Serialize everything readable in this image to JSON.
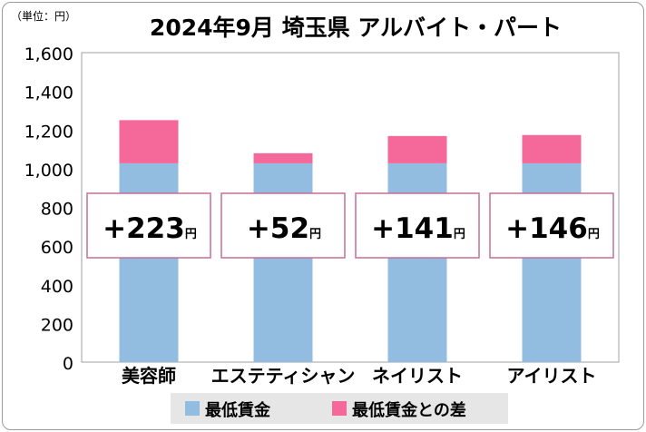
{
  "unit_label": "（単位：円）",
  "chart_data": {
    "type": "bar",
    "stacked": true,
    "title": "2024年9月 埼玉県 アルバイト・パート",
    "categories": [
      "美容師",
      "エステティシャン",
      "ネイリスト",
      "アイリスト"
    ],
    "series": [
      {
        "name": "最低賃金",
        "color": "#92bde0",
        "values": [
          1028,
          1028,
          1028,
          1028
        ]
      },
      {
        "name": "最低賃金との差",
        "color": "#f4689a",
        "values": [
          223,
          52,
          141,
          146
        ]
      }
    ],
    "diff_labels": [
      "+223",
      "+52",
      "+141",
      "+146"
    ],
    "diff_unit": "円",
    "ylim": [
      0,
      1600
    ],
    "yticks": [
      "0",
      "200",
      "400",
      "600",
      "800",
      "1,000",
      "1,200",
      "1,400",
      "1,600"
    ],
    "grid": false,
    "legend_position": "bottom"
  }
}
